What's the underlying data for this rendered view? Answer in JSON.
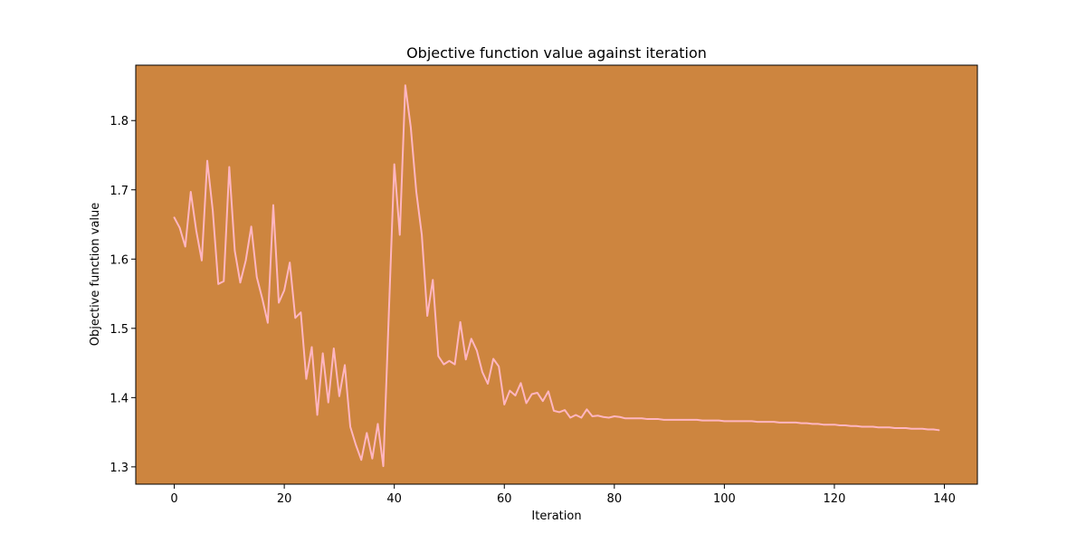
{
  "chart_data": {
    "type": "line",
    "title": "Objective function value against iteration",
    "xlabel": "Iteration",
    "ylabel": "Objective function value",
    "xlim": [
      -7,
      146
    ],
    "ylim": [
      1.275,
      1.88
    ],
    "xticks": [
      0,
      20,
      40,
      60,
      80,
      100,
      120,
      140
    ],
    "yticks": [
      1.3,
      1.4,
      1.5,
      1.6,
      1.7,
      1.8
    ],
    "grid": false,
    "plot_background": "#CD853F",
    "series": [
      {
        "color": "#FFB6C1",
        "x": [
          0,
          1,
          2,
          3,
          4,
          5,
          6,
          7,
          8,
          9,
          10,
          11,
          12,
          13,
          14,
          15,
          16,
          17,
          18,
          19,
          20,
          21,
          22,
          23,
          24,
          25,
          26,
          27,
          28,
          29,
          30,
          31,
          32,
          33,
          34,
          35,
          36,
          37,
          38,
          39,
          40,
          41,
          42,
          43,
          44,
          45,
          46,
          47,
          48,
          49,
          50,
          51,
          52,
          53,
          54,
          55,
          56,
          57,
          58,
          59,
          60,
          61,
          62,
          63,
          64,
          65,
          66,
          67,
          68,
          69,
          70,
          71,
          72,
          73,
          74,
          75,
          76,
          77,
          78,
          79,
          80,
          81,
          82,
          83,
          84,
          85,
          86,
          87,
          88,
          89,
          90,
          91,
          92,
          93,
          94,
          95,
          96,
          97,
          98,
          99,
          100,
          101,
          102,
          103,
          104,
          105,
          106,
          107,
          108,
          109,
          110,
          111,
          112,
          113,
          114,
          115,
          116,
          117,
          118,
          119,
          120,
          121,
          122,
          123,
          124,
          125,
          126,
          127,
          128,
          129,
          130,
          131,
          132,
          133,
          134,
          135,
          136,
          137,
          138,
          139
        ],
        "y": [
          1.66,
          1.645,
          1.618,
          1.697,
          1.641,
          1.598,
          1.742,
          1.67,
          1.564,
          1.568,
          1.733,
          1.612,
          1.566,
          1.598,
          1.647,
          1.574,
          1.543,
          1.508,
          1.678,
          1.537,
          1.555,
          1.595,
          1.515,
          1.523,
          1.427,
          1.473,
          1.375,
          1.464,
          1.393,
          1.471,
          1.402,
          1.447,
          1.358,
          1.332,
          1.31,
          1.349,
          1.312,
          1.362,
          1.301,
          1.52,
          1.737,
          1.635,
          1.851,
          1.79,
          1.697,
          1.635,
          1.518,
          1.57,
          1.46,
          1.448,
          1.453,
          1.448,
          1.509,
          1.455,
          1.485,
          1.468,
          1.437,
          1.42,
          1.456,
          1.445,
          1.39,
          1.41,
          1.403,
          1.421,
          1.392,
          1.405,
          1.407,
          1.395,
          1.409,
          1.381,
          1.379,
          1.382,
          1.371,
          1.375,
          1.371,
          1.383,
          1.373,
          1.374,
          1.372,
          1.371,
          1.373,
          1.372,
          1.37,
          1.37,
          1.37,
          1.37,
          1.369,
          1.369,
          1.369,
          1.368,
          1.368,
          1.368,
          1.368,
          1.368,
          1.368,
          1.368,
          1.367,
          1.367,
          1.367,
          1.367,
          1.366,
          1.366,
          1.366,
          1.366,
          1.366,
          1.366,
          1.365,
          1.365,
          1.365,
          1.365,
          1.364,
          1.364,
          1.364,
          1.364,
          1.363,
          1.363,
          1.362,
          1.362,
          1.361,
          1.361,
          1.361,
          1.36,
          1.36,
          1.359,
          1.359,
          1.358,
          1.358,
          1.358,
          1.357,
          1.357,
          1.357,
          1.356,
          1.356,
          1.356,
          1.355,
          1.355,
          1.355,
          1.354,
          1.354,
          1.353
        ]
      }
    ]
  }
}
